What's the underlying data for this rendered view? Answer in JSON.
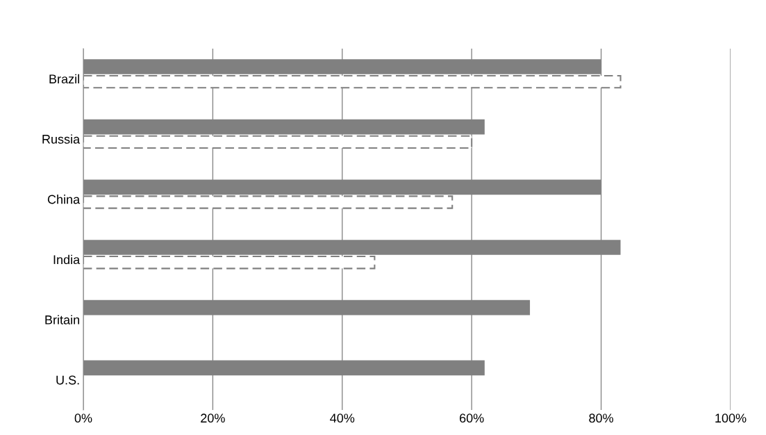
{
  "chart_data": {
    "type": "bar",
    "orientation": "horizontal",
    "categories": [
      "Brazil",
      "Russia",
      "China",
      "India",
      "Britain",
      "U.S."
    ],
    "series": [
      {
        "color": "#808080",
        "values": [
          80,
          62,
          80,
          83,
          69,
          62
        ]
      },
      {
        "color": "#808080",
        "line_style": "dashed",
        "values": [
          83,
          60,
          57,
          45,
          null,
          null
        ]
      }
    ],
    "xlim": [
      0,
      100
    ],
    "xticks": [
      {
        "value": 0,
        "label": "0%"
      },
      {
        "value": 20,
        "label": "20%"
      },
      {
        "value": 40,
        "label": "40%"
      },
      {
        "value": 60,
        "label": "60%"
      },
      {
        "value": 80,
        "label": "80%"
      },
      {
        "value": 100,
        "label": "100%"
      }
    ],
    "grid": "x"
  }
}
